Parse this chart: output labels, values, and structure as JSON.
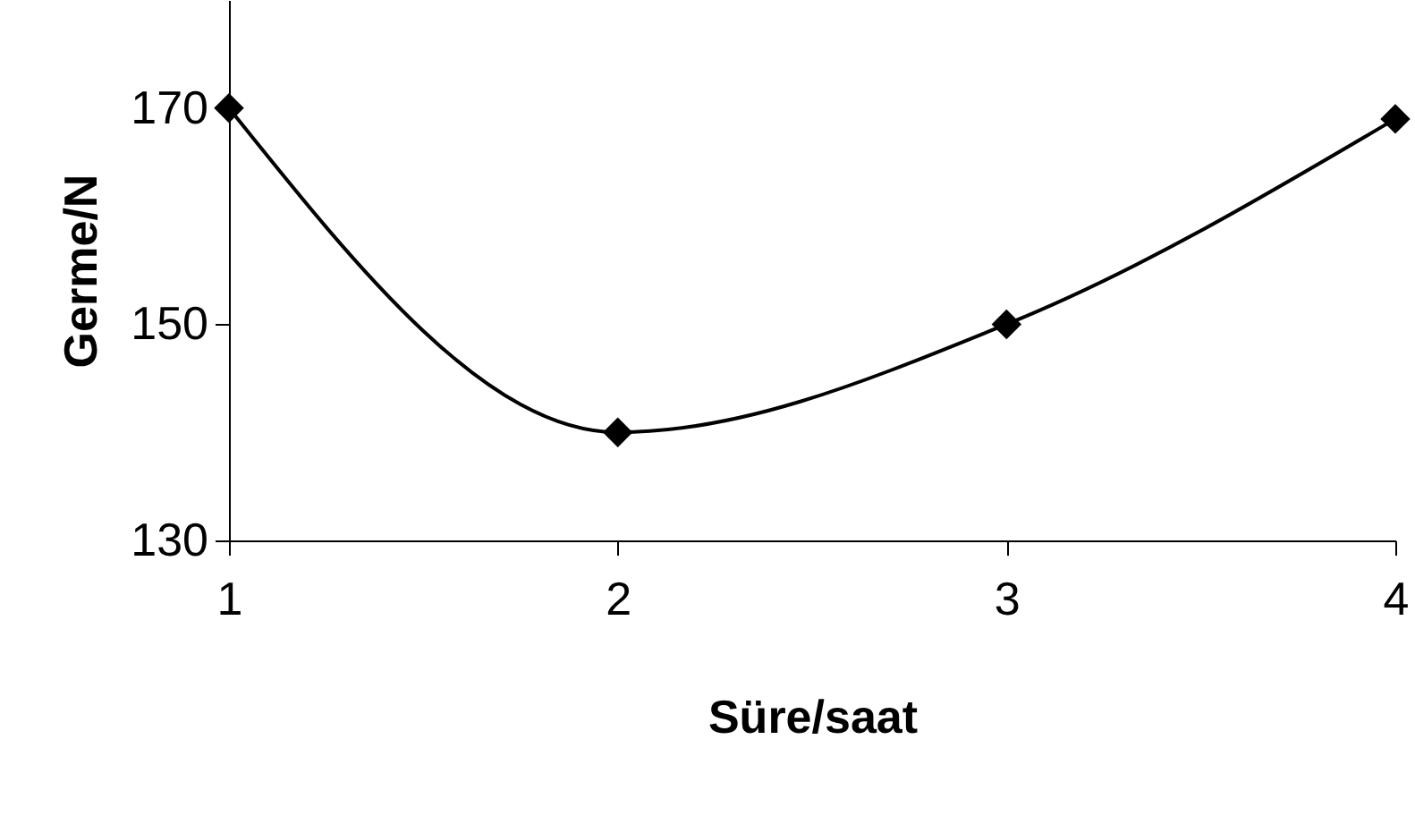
{
  "chart_data": {
    "type": "line",
    "xlabel": "Süre/saat",
    "ylabel": "Germe/N",
    "x": [
      1,
      2,
      3,
      4
    ],
    "series": [
      {
        "color": "#000000",
        "values": [
          170,
          140,
          150,
          169
        ]
      }
    ],
    "xlim": [
      1,
      4
    ],
    "xticks": [
      1,
      2,
      3,
      4
    ],
    "ylim": [
      130,
      180
    ],
    "yticks": [
      130,
      150,
      170
    ],
    "marker": "diamond",
    "line_style": "solid",
    "grid": false
  }
}
